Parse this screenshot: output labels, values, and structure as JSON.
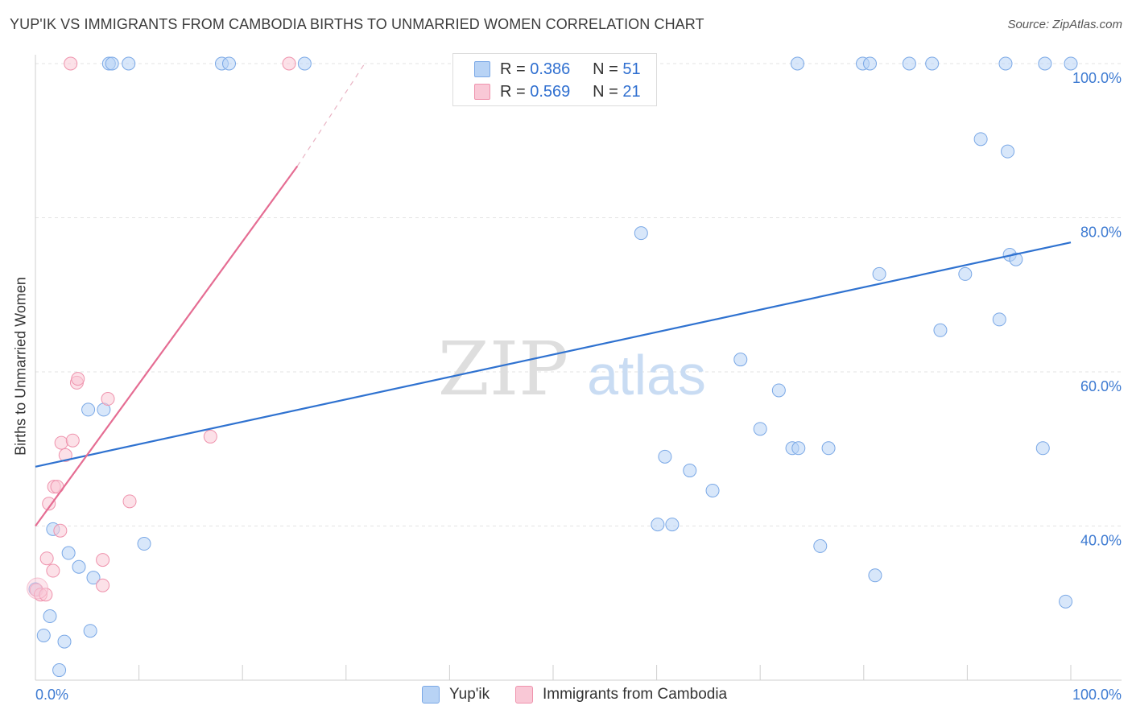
{
  "title": "YUP'IK VS IMMIGRANTS FROM CAMBODIA BIRTHS TO UNMARRIED WOMEN CORRELATION CHART",
  "source": "Source: ZipAtlas.com",
  "watermark": {
    "zip": "ZIP",
    "atlas": "atlas"
  },
  "legend": {
    "r_label": "R =",
    "n_label": "N =",
    "entries": [
      {
        "name": "Yup'ik",
        "r": "0.386",
        "n": "51"
      },
      {
        "name": "Immigrants from Cambodia",
        "r": "0.569",
        "n": "21"
      }
    ]
  },
  "colors": {
    "blue_fill": "#b8d3f5",
    "blue_stroke": "#7aa8e6",
    "blue_line": "#2f72d0",
    "pink_fill": "#f9c8d6",
    "pink_stroke": "#ef93ad",
    "pink_line": "#e56d93",
    "tick_text": "#3e7bd2",
    "grid": "#e3e3e3"
  },
  "chart_data": {
    "type": "scatter",
    "title": "YUP'IK VS IMMIGRANTS FROM CAMBODIA BIRTHS TO UNMARRIED WOMEN CORRELATION CHART",
    "xlabel": "",
    "ylabel": "Births to Unmarried Women",
    "xlim": [
      0,
      100
    ],
    "ylim": [
      20,
      100
    ],
    "x_tick_labels": [
      "0.0%",
      "100.0%"
    ],
    "y_ticks": [
      40,
      60,
      80,
      100
    ],
    "y_tick_labels": [
      "40.0%",
      "60.0%",
      "80.0%",
      "100.0%"
    ],
    "grid": true,
    "legend_position": "top-center",
    "series": [
      {
        "name": "Yup'ik",
        "color": "#b8d3f5",
        "r": 0.386,
        "n": 51,
        "trend": {
          "x": [
            0,
            100
          ],
          "y": [
            47.7,
            76.8
          ]
        },
        "points": [
          [
            0.0,
            31.8
          ],
          [
            0.8,
            25.8
          ],
          [
            1.4,
            28.3
          ],
          [
            1.7,
            39.6
          ],
          [
            2.3,
            21.3
          ],
          [
            2.8,
            25.0
          ],
          [
            3.2,
            36.5
          ],
          [
            4.2,
            34.7
          ],
          [
            5.1,
            55.1
          ],
          [
            5.3,
            26.4
          ],
          [
            5.6,
            33.3
          ],
          [
            6.6,
            55.1
          ],
          [
            10.5,
            37.7
          ],
          [
            7.1,
            100
          ],
          [
            7.4,
            100
          ],
          [
            9.0,
            100
          ],
          [
            18.0,
            100
          ],
          [
            18.7,
            100
          ],
          [
            26.0,
            100
          ],
          [
            58.5,
            78.0
          ],
          [
            60.1,
            40.2
          ],
          [
            60.8,
            49.0
          ],
          [
            61.5,
            40.2
          ],
          [
            63.2,
            47.2
          ],
          [
            65.4,
            44.6
          ],
          [
            68.1,
            61.6
          ],
          [
            70.0,
            52.6
          ],
          [
            71.8,
            57.6
          ],
          [
            73.1,
            50.1
          ],
          [
            73.7,
            50.1
          ],
          [
            76.6,
            50.1
          ],
          [
            75.8,
            37.4
          ],
          [
            81.1,
            33.6
          ],
          [
            81.5,
            72.7
          ],
          [
            87.4,
            65.4
          ],
          [
            89.8,
            72.7
          ],
          [
            91.3,
            90.2
          ],
          [
            93.1,
            66.8
          ],
          [
            93.9,
            88.6
          ],
          [
            94.1,
            75.2
          ],
          [
            94.7,
            74.6
          ],
          [
            97.3,
            50.1
          ],
          [
            99.5,
            30.2
          ],
          [
            73.6,
            100
          ],
          [
            79.9,
            100
          ],
          [
            80.6,
            100
          ],
          [
            84.4,
            100
          ],
          [
            86.6,
            100
          ],
          [
            93.7,
            100
          ],
          [
            97.5,
            100
          ],
          [
            100.0,
            100
          ]
        ]
      },
      {
        "name": "Immigrants from Cambodia",
        "color": "#f9c8d6",
        "r": 0.569,
        "n": 21,
        "trend": {
          "x": [
            0,
            25.3
          ],
          "y": [
            40.0,
            86.7
          ],
          "dashed_to": {
            "x": 31.8,
            "y": 100
          }
        },
        "points": [
          [
            0.1,
            31.7
          ],
          [
            0.5,
            31.1
          ],
          [
            1.0,
            31.1
          ],
          [
            1.1,
            35.8
          ],
          [
            1.3,
            42.9
          ],
          [
            1.7,
            34.2
          ],
          [
            1.8,
            45.1
          ],
          [
            2.1,
            45.1
          ],
          [
            2.4,
            39.4
          ],
          [
            2.5,
            50.8
          ],
          [
            2.9,
            49.2
          ],
          [
            3.4,
            100
          ],
          [
            3.6,
            51.1
          ],
          [
            4.0,
            58.6
          ],
          [
            4.1,
            59.1
          ],
          [
            6.5,
            32.3
          ],
          [
            6.5,
            35.6
          ],
          [
            7.0,
            56.5
          ],
          [
            9.1,
            43.2
          ],
          [
            16.9,
            51.6
          ],
          [
            24.5,
            100
          ]
        ]
      }
    ]
  }
}
